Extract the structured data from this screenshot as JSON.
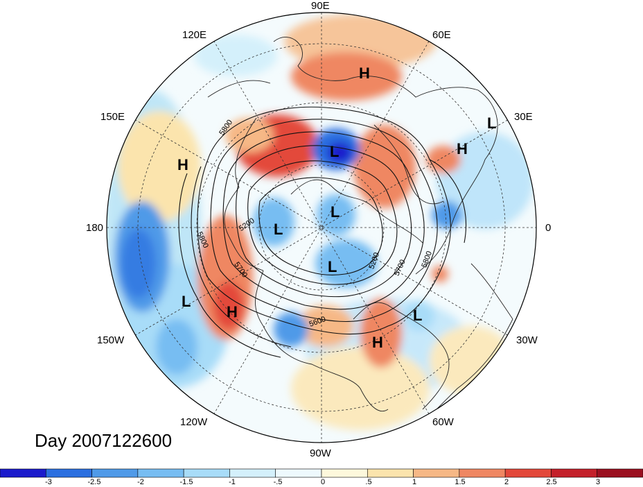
{
  "title": "Day 2007122600",
  "longitude_labels": {
    "north": "90E",
    "ne1": "60E",
    "ne2": "30E",
    "east": "0",
    "se1": "30W",
    "se2": "60W",
    "south": "90W",
    "sw1": "120W",
    "sw2": "150W",
    "west": "180",
    "nw1": "150E",
    "nw2": "120E"
  },
  "contour_labels": [
    "5800",
    "5200",
    "5200",
    "5800",
    "5700",
    "5700",
    "5800",
    "5600"
  ],
  "pressure_centers": [
    {
      "symbol": "H",
      "kind": "high"
    },
    {
      "symbol": "L",
      "kind": "low"
    },
    {
      "symbol": "H",
      "kind": "high"
    },
    {
      "symbol": "H",
      "kind": "high"
    },
    {
      "symbol": "L",
      "kind": "low"
    },
    {
      "symbol": "L",
      "kind": "low"
    },
    {
      "symbol": "L",
      "kind": "low"
    },
    {
      "symbol": "L",
      "kind": "low"
    },
    {
      "symbol": "L",
      "kind": "low"
    },
    {
      "symbol": "H",
      "kind": "high"
    },
    {
      "symbol": "L",
      "kind": "low"
    },
    {
      "symbol": "H",
      "kind": "high"
    }
  ],
  "colorbar": {
    "ticks": [
      "-3",
      "-2.5",
      "-2",
      "-1.5",
      "-1",
      "-.5",
      "0",
      ".5",
      "1",
      "1.5",
      "2",
      "2.5",
      "3"
    ],
    "colors": [
      "#1a1acc",
      "#2b6fe0",
      "#4f9ae8",
      "#77bdf2",
      "#a8dcf8",
      "#d4f0fb",
      "#eef9fd",
      "#fdf8dc",
      "#fbe4ad",
      "#f6b886",
      "#ef8762",
      "#e3483a",
      "#c4202a",
      "#9b0f1f"
    ]
  }
}
